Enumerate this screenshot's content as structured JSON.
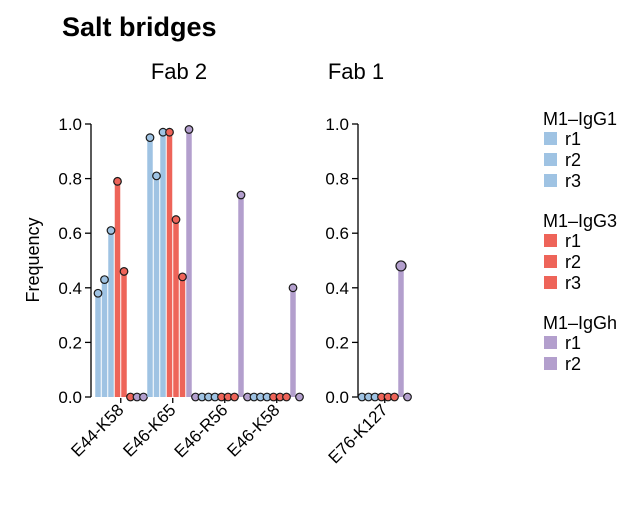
{
  "chart_data": {
    "type": "bar",
    "title": "Salt bridges",
    "ylabel": "Frequency",
    "ylim": [
      0,
      1.0
    ],
    "yticks": [
      "0.0",
      "0.2",
      "0.4",
      "0.6",
      "0.8",
      "1.0"
    ],
    "colors": {
      "M1–IgG1": "#9fc3e3",
      "M1–IgG3": "#ee6459",
      "M1–IgGh": "#b39fcd"
    },
    "series": [
      {
        "name": "M1–IgG1 r1",
        "group": "M1–IgG1"
      },
      {
        "name": "M1–IgG1 r2",
        "group": "M1–IgG1"
      },
      {
        "name": "M1–IgG1 r3",
        "group": "M1–IgG1"
      },
      {
        "name": "M1–IgG3 r1",
        "group": "M1–IgG3"
      },
      {
        "name": "M1–IgG3 r2",
        "group": "M1–IgG3"
      },
      {
        "name": "M1–IgG3 r3",
        "group": "M1–IgG3"
      },
      {
        "name": "M1–IgGh r1",
        "group": "M1–IgGh"
      },
      {
        "name": "M1–IgGh r2",
        "group": "M1–IgGh"
      }
    ],
    "panels": [
      {
        "title": "Fab 2",
        "categories": [
          "E44-K58",
          "E46-K65",
          "E46-R56",
          "E46-K58"
        ],
        "values": [
          [
            0.38,
            0.43,
            0.61,
            0.79,
            0.46,
            0.0,
            0.0,
            0.0
          ],
          [
            0.95,
            0.81,
            0.97,
            0.97,
            0.65,
            0.44,
            0.98,
            0.0
          ],
          [
            0.0,
            0.0,
            0.0,
            0.0,
            0.0,
            0.0,
            0.74,
            0.0
          ],
          [
            0.0,
            0.0,
            0.0,
            0.0,
            0.0,
            0.0,
            0.4,
            0.0
          ]
        ]
      },
      {
        "title": "Fab 1",
        "categories": [
          "E76-K127"
        ],
        "values": [
          [
            0.0,
            0.0,
            0.0,
            0.0,
            0.0,
            0.0,
            0.48,
            0.0
          ]
        ]
      }
    ],
    "legend": [
      {
        "title": "M1–IgG1",
        "color": "#9fc3e3",
        "items": [
          "r1",
          "r2",
          "r3"
        ]
      },
      {
        "title": "M1–IgG3",
        "color": "#ee6459",
        "items": [
          "r1",
          "r2",
          "r3"
        ]
      },
      {
        "title": "M1–IgGh",
        "color": "#b39fcd",
        "items": [
          "r1",
          "r2"
        ]
      }
    ],
    "legend_position": "right",
    "grid": false
  }
}
